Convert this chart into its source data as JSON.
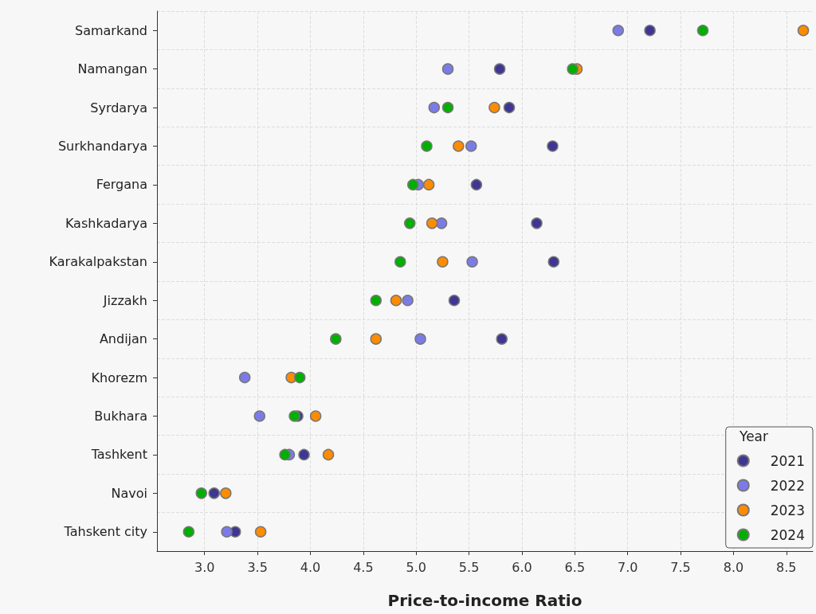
{
  "chart_data": {
    "type": "scatter",
    "xlabel": "Price-to-income Ratio",
    "legend_title": "Year",
    "categories": [
      "Samarkand",
      "Namangan",
      "Syrdarya",
      "Surkhandarya",
      "Fergana",
      "Kashkadarya",
      "Karakalpakstan",
      "Jizzakh",
      "Andijan",
      "Khorezm",
      "Bukhara",
      "Tashkent",
      "Navoi",
      "Tahskent city"
    ],
    "series": [
      {
        "name": "2021",
        "color": "#3f3694",
        "values": [
          7.21,
          5.79,
          5.88,
          6.29,
          5.57,
          6.14,
          6.3,
          5.36,
          5.81,
          null,
          3.88,
          3.94,
          3.09,
          3.29
        ]
      },
      {
        "name": "2022",
        "color": "#7b7be8",
        "values": [
          6.91,
          5.3,
          5.17,
          5.52,
          5.02,
          5.24,
          5.53,
          4.92,
          5.04,
          3.38,
          3.52,
          3.8,
          null,
          3.21
        ]
      },
      {
        "name": "2023",
        "color": "#ff8c00",
        "values": [
          8.66,
          6.52,
          5.74,
          5.4,
          5.12,
          5.15,
          5.25,
          4.81,
          4.62,
          3.82,
          4.05,
          4.17,
          3.2,
          3.53
        ]
      },
      {
        "name": "2024",
        "color": "#00b000",
        "values": [
          7.71,
          6.48,
          5.3,
          5.1,
          4.97,
          4.94,
          4.85,
          4.62,
          4.24,
          3.9,
          3.85,
          3.76,
          2.97,
          2.85
        ]
      }
    ],
    "orientation": "horizontal",
    "xlim": [
      2.55,
      8.75
    ],
    "xticks": [
      {
        "value": 3,
        "label": "3.0"
      },
      {
        "value": 3.5,
        "label": "3.5"
      },
      {
        "value": 4,
        "label": "4.0"
      },
      {
        "value": 4.5,
        "label": "4.5"
      },
      {
        "value": 5,
        "label": "5.0"
      },
      {
        "value": 5.5,
        "label": "5.5"
      },
      {
        "value": 6,
        "label": "6.0"
      },
      {
        "value": 6.5,
        "label": "6.5"
      },
      {
        "value": 7,
        "label": "7.0"
      },
      {
        "value": 7.5,
        "label": "7.5"
      },
      {
        "value": 8,
        "label": "8.0"
      },
      {
        "value": 8.5,
        "label": "8.5"
      }
    ],
    "grid": true,
    "legend": "bottom right",
    "marker": "circle"
  }
}
